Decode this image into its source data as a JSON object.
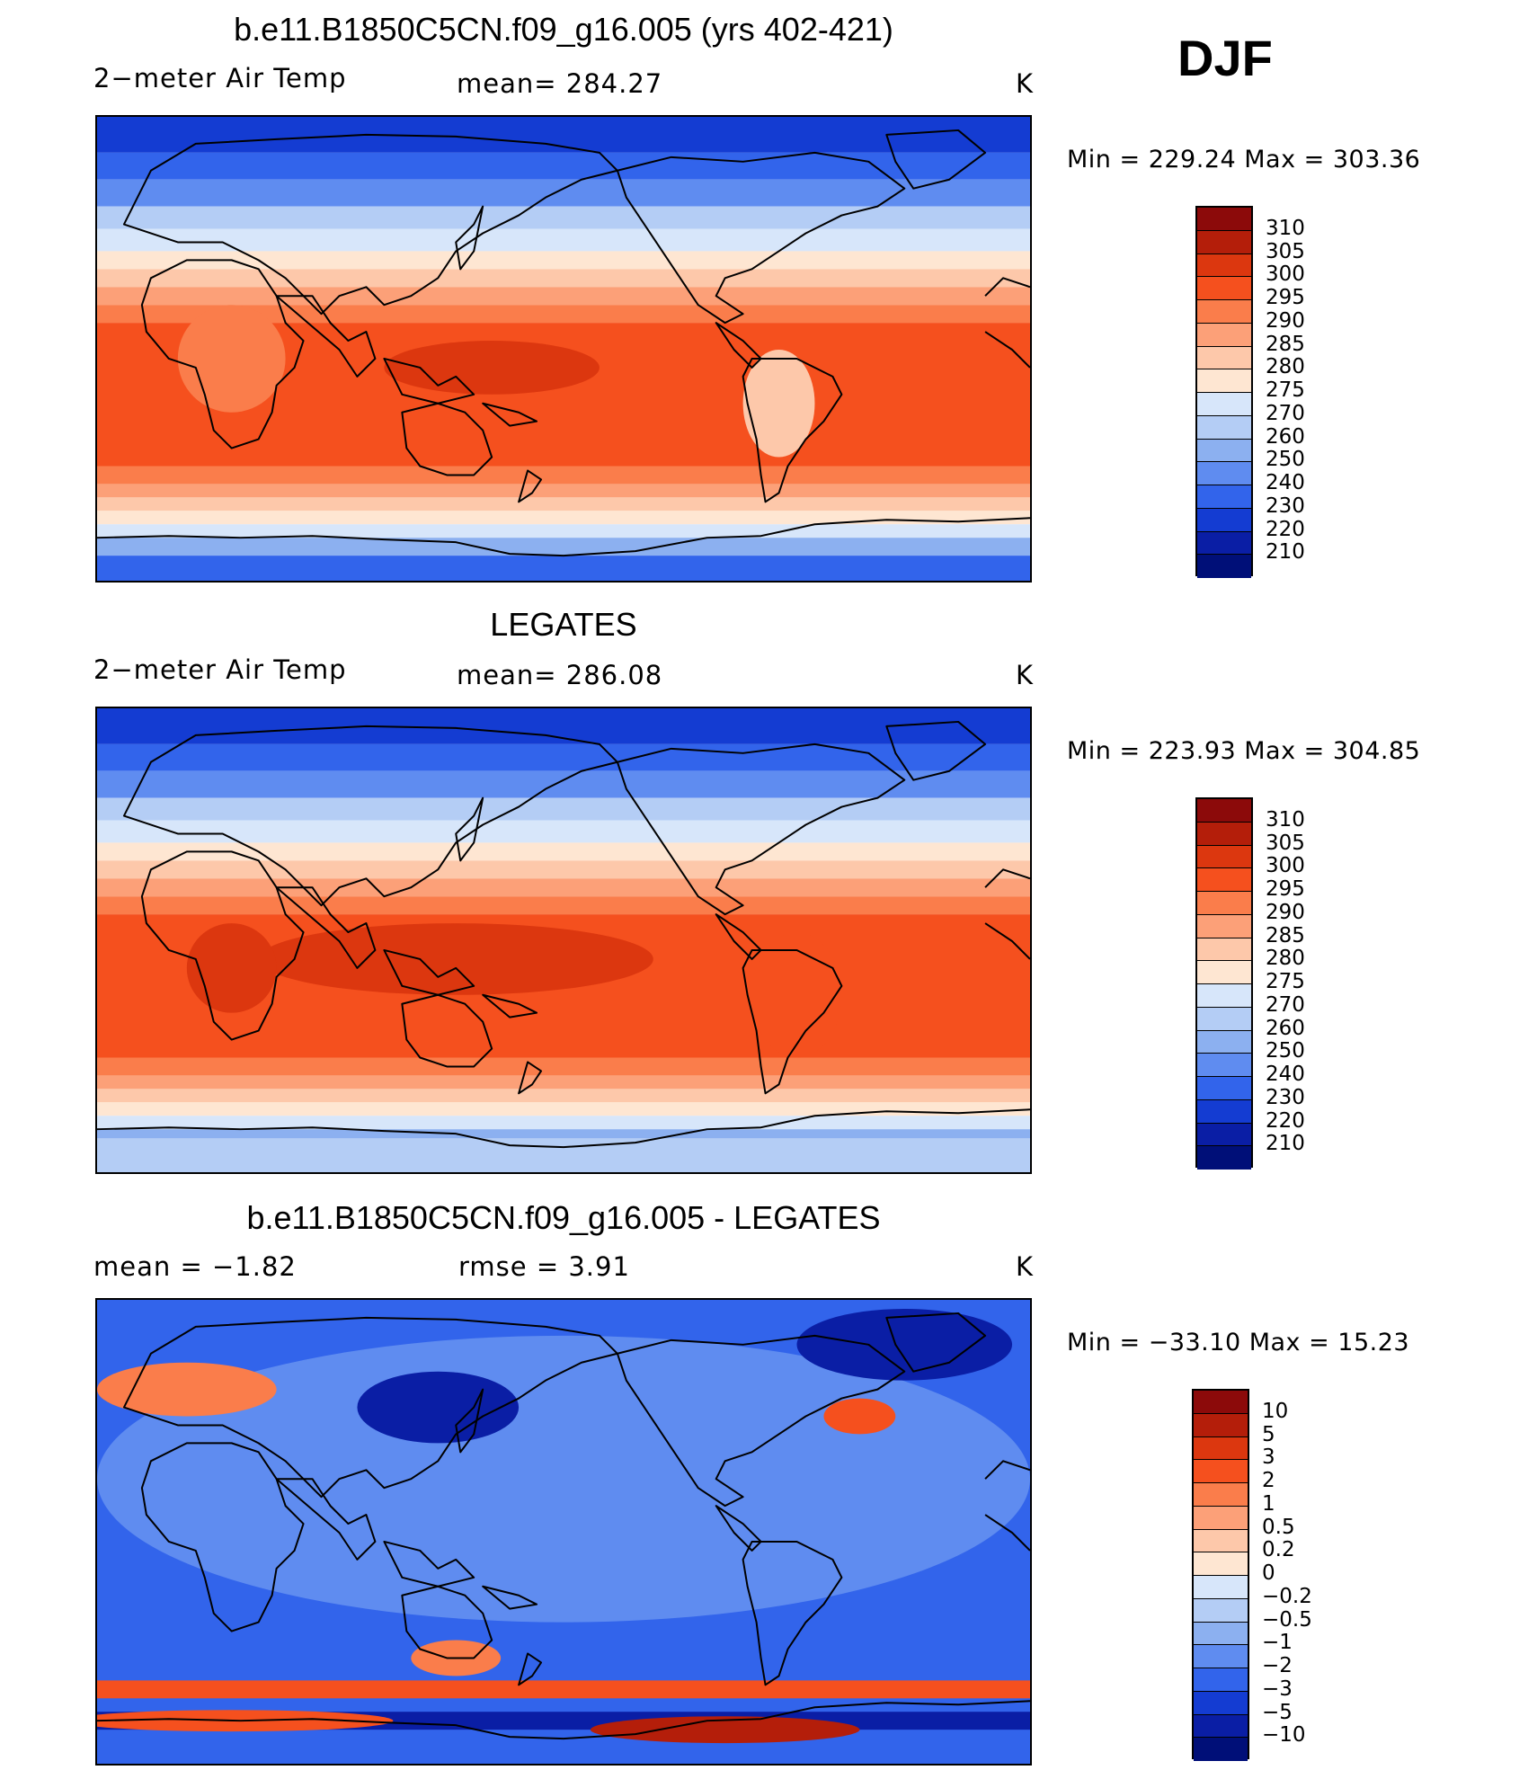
{
  "season": "DJF",
  "panels": [
    {
      "title": "b.e11.B1850C5CN.f09_g16.005 (yrs 402-421)",
      "left_label": "2−meter Air Temp",
      "mid_label": "mean=  284.27",
      "units": "K",
      "minmax": "Min  =  229.24  Max  =  303.36",
      "colorbar": {
        "labels": [
          "310",
          "305",
          "300",
          "295",
          "290",
          "285",
          "280",
          "275",
          "270",
          "260",
          "250",
          "240",
          "230",
          "220",
          "210"
        ],
        "colors": [
          "#8c0a0a",
          "#b41e0a",
          "#dc370f",
          "#f5501e",
          "#fa7d4b",
          "#fca078",
          "#fdc8aa",
          "#fee6d2",
          "#d7e6fa",
          "#b4cdf5",
          "#8cb0f0",
          "#5f8cf0",
          "#3264eb",
          "#143cd2",
          "#0a1ea5",
          "#000f78"
        ]
      },
      "map_style": "model"
    },
    {
      "title": "LEGATES",
      "left_label": "2−meter Air Temp",
      "mid_label": "mean=  286.08",
      "units": "K",
      "minmax": "Min  =  223.93  Max  =  304.85",
      "colorbar": {
        "labels": [
          "310",
          "305",
          "300",
          "295",
          "290",
          "285",
          "280",
          "275",
          "270",
          "260",
          "250",
          "240",
          "230",
          "220",
          "210"
        ],
        "colors": [
          "#8c0a0a",
          "#b41e0a",
          "#dc370f",
          "#f5501e",
          "#fa7d4b",
          "#fca078",
          "#fdc8aa",
          "#fee6d2",
          "#d7e6fa",
          "#b4cdf5",
          "#8cb0f0",
          "#5f8cf0",
          "#3264eb",
          "#143cd2",
          "#0a1ea5",
          "#000f78"
        ]
      },
      "map_style": "obs"
    },
    {
      "title": "b.e11.B1850C5CN.f09_g16.005 - LEGATES",
      "left_label": "mean =    −1.82",
      "mid_label": "rmse =     3.91",
      "units": "K",
      "minmax": "Min  =  −33.10  Max  =    15.23",
      "colorbar": {
        "labels": [
          "10",
          "5",
          "3",
          "2",
          "1",
          "0.5",
          "0.2",
          "0",
          "−0.2",
          "−0.5",
          "−1",
          "−2",
          "−3",
          "−5",
          "−10"
        ],
        "colors": [
          "#8c0a0a",
          "#b41e0a",
          "#dc370f",
          "#f5501e",
          "#fa7d4b",
          "#fca078",
          "#fdc8aa",
          "#fee6d2",
          "#d7e6fa",
          "#b4cdf5",
          "#8cb0f0",
          "#5f8cf0",
          "#3264eb",
          "#143cd2",
          "#0a1ea5",
          "#000f78"
        ]
      },
      "map_style": "diff"
    }
  ]
}
